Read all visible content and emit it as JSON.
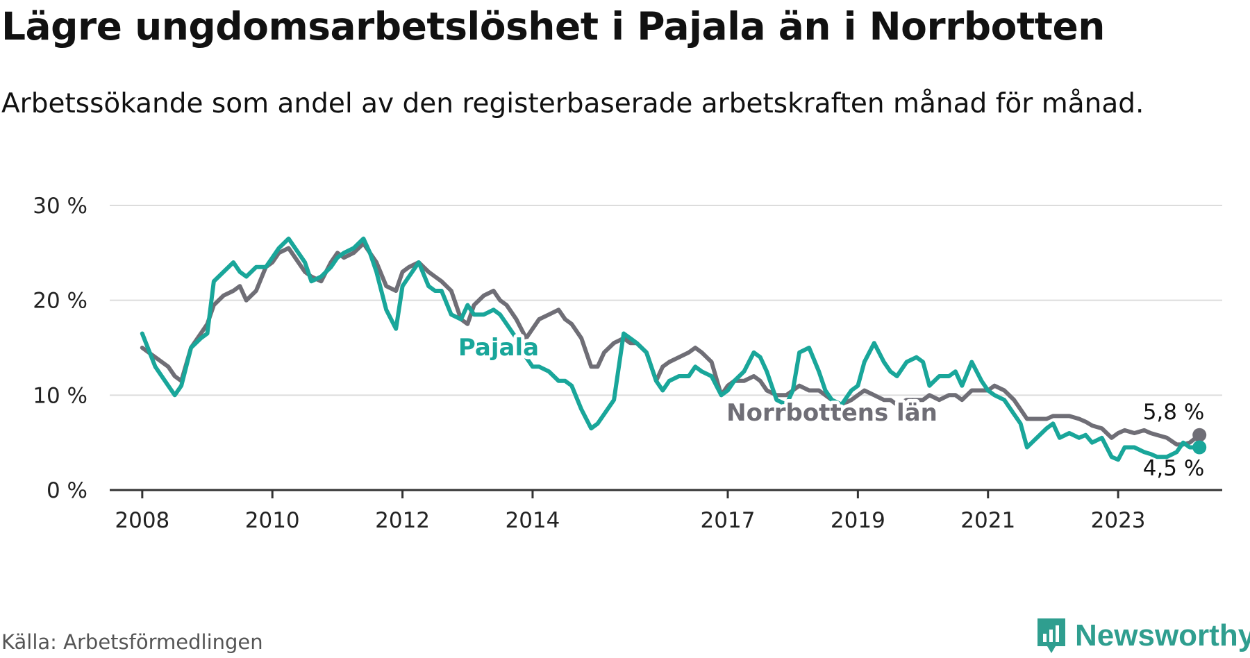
{
  "title": "Lägre ungdomsarbetslöshet i Pajala än i Norrbotten",
  "subtitle": "Arbetssökande som andel av den registerbaserade arbetskraften månad för månad.",
  "source": "Källa: Arbetsförmedlingen",
  "brand": "Newsworthy",
  "colors": {
    "pajala": "#19a69a",
    "norrbotten": "#6f6e76",
    "grid": "#dcdcdc",
    "axis": "#333333",
    "brand": "#2f9e8f"
  },
  "chart_data": {
    "type": "line",
    "title": "Lägre ungdomsarbetslöshet i Pajala än i Norrbotten",
    "xlabel": "",
    "ylabel": "",
    "ylim": [
      0,
      30
    ],
    "xlim": [
      2007.5,
      2024.6
    ],
    "x_ticks": [
      {
        "value": 2008,
        "label": "2008"
      },
      {
        "value": 2010,
        "label": "2010"
      },
      {
        "value": 2012,
        "label": "2012"
      },
      {
        "value": 2014,
        "label": "2014"
      },
      {
        "value": 2017,
        "label": "2017"
      },
      {
        "value": 2019,
        "label": "2019"
      },
      {
        "value": 2021,
        "label": "2021"
      },
      {
        "value": 2023,
        "label": "2023"
      }
    ],
    "y_ticks": [
      {
        "value": 0,
        "label": "0 %"
      },
      {
        "value": 10,
        "label": "10 %"
      },
      {
        "value": 20,
        "label": "20 %"
      },
      {
        "value": 30,
        "label": "30 %"
      }
    ],
    "grid": true,
    "series": [
      {
        "name": "Norrbottens län",
        "label": "Norrbottens län",
        "color": "#6f6e76",
        "end_label": "5,8 %",
        "points": [
          [
            2008.0,
            15.0
          ],
          [
            2008.2,
            14.0
          ],
          [
            2008.4,
            13.0
          ],
          [
            2008.5,
            12.0
          ],
          [
            2008.6,
            11.5
          ],
          [
            2008.75,
            15.0
          ],
          [
            2008.9,
            16.5
          ],
          [
            2009.0,
            17.5
          ],
          [
            2009.1,
            19.5
          ],
          [
            2009.25,
            20.5
          ],
          [
            2009.4,
            21.0
          ],
          [
            2009.5,
            21.5
          ],
          [
            2009.6,
            20.0
          ],
          [
            2009.75,
            21.0
          ],
          [
            2009.9,
            23.5
          ],
          [
            2010.0,
            24.0
          ],
          [
            2010.1,
            25.0
          ],
          [
            2010.25,
            25.5
          ],
          [
            2010.4,
            24.0
          ],
          [
            2010.5,
            23.0
          ],
          [
            2010.6,
            22.5
          ],
          [
            2010.75,
            22.0
          ],
          [
            2010.9,
            24.0
          ],
          [
            2011.0,
            25.0
          ],
          [
            2011.1,
            24.5
          ],
          [
            2011.25,
            25.0
          ],
          [
            2011.4,
            26.0
          ],
          [
            2011.5,
            25.0
          ],
          [
            2011.6,
            24.0
          ],
          [
            2011.75,
            21.5
          ],
          [
            2011.9,
            21.0
          ],
          [
            2012.0,
            23.0
          ],
          [
            2012.1,
            23.5
          ],
          [
            2012.25,
            24.0
          ],
          [
            2012.4,
            23.0
          ],
          [
            2012.5,
            22.5
          ],
          [
            2012.6,
            22.0
          ],
          [
            2012.75,
            21.0
          ],
          [
            2012.9,
            18.0
          ],
          [
            2013.0,
            17.5
          ],
          [
            2013.1,
            19.5
          ],
          [
            2013.25,
            20.5
          ],
          [
            2013.4,
            21.0
          ],
          [
            2013.5,
            20.0
          ],
          [
            2013.6,
            19.5
          ],
          [
            2013.75,
            18.0
          ],
          [
            2013.9,
            16.0
          ],
          [
            2014.0,
            17.0
          ],
          [
            2014.1,
            18.0
          ],
          [
            2014.25,
            18.5
          ],
          [
            2014.4,
            19.0
          ],
          [
            2014.5,
            18.0
          ],
          [
            2014.6,
            17.5
          ],
          [
            2014.75,
            16.0
          ],
          [
            2014.9,
            13.0
          ],
          [
            2015.0,
            13.0
          ],
          [
            2015.1,
            14.5
          ],
          [
            2015.25,
            15.5
          ],
          [
            2015.4,
            16.0
          ],
          [
            2015.5,
            15.5
          ],
          [
            2015.6,
            15.5
          ],
          [
            2015.75,
            14.5
          ],
          [
            2015.9,
            11.5
          ],
          [
            2016.0,
            13.0
          ],
          [
            2016.1,
            13.5
          ],
          [
            2016.25,
            14.0
          ],
          [
            2016.4,
            14.5
          ],
          [
            2016.5,
            15.0
          ],
          [
            2016.6,
            14.5
          ],
          [
            2016.75,
            13.5
          ],
          [
            2016.9,
            10.0
          ],
          [
            2017.0,
            11.0
          ],
          [
            2017.1,
            11.5
          ],
          [
            2017.25,
            11.5
          ],
          [
            2017.4,
            12.0
          ],
          [
            2017.5,
            11.5
          ],
          [
            2017.6,
            10.5
          ],
          [
            2017.75,
            10.0
          ],
          [
            2017.9,
            10.0
          ],
          [
            2018.0,
            10.5
          ],
          [
            2018.1,
            11.0
          ],
          [
            2018.25,
            10.5
          ],
          [
            2018.4,
            10.5
          ],
          [
            2018.5,
            10.0
          ],
          [
            2018.6,
            9.5
          ],
          [
            2018.75,
            9.0
          ],
          [
            2018.9,
            9.5
          ],
          [
            2019.0,
            10.0
          ],
          [
            2019.1,
            10.5
          ],
          [
            2019.25,
            10.0
          ],
          [
            2019.4,
            9.5
          ],
          [
            2019.5,
            9.5
          ],
          [
            2019.6,
            9.0
          ],
          [
            2019.75,
            9.5
          ],
          [
            2019.9,
            9.5
          ],
          [
            2020.0,
            9.5
          ],
          [
            2020.1,
            10.0
          ],
          [
            2020.25,
            9.5
          ],
          [
            2020.4,
            10.0
          ],
          [
            2020.5,
            10.0
          ],
          [
            2020.6,
            9.5
          ],
          [
            2020.75,
            10.5
          ],
          [
            2020.9,
            10.5
          ],
          [
            2021.0,
            10.5
          ],
          [
            2021.1,
            11.0
          ],
          [
            2021.25,
            10.5
          ],
          [
            2021.4,
            9.5
          ],
          [
            2021.5,
            8.5
          ],
          [
            2021.6,
            7.5
          ],
          [
            2021.75,
            7.5
          ],
          [
            2021.9,
            7.5
          ],
          [
            2022.0,
            7.8
          ],
          [
            2022.1,
            7.8
          ],
          [
            2022.25,
            7.8
          ],
          [
            2022.4,
            7.5
          ],
          [
            2022.5,
            7.2
          ],
          [
            2022.6,
            6.8
          ],
          [
            2022.75,
            6.5
          ],
          [
            2022.9,
            5.5
          ],
          [
            2023.0,
            6.0
          ],
          [
            2023.1,
            6.3
          ],
          [
            2023.25,
            6.0
          ],
          [
            2023.4,
            6.3
          ],
          [
            2023.5,
            6.0
          ],
          [
            2023.6,
            5.8
          ],
          [
            2023.75,
            5.5
          ],
          [
            2023.9,
            4.8
          ],
          [
            2024.0,
            4.8
          ],
          [
            2024.1,
            5.0
          ],
          [
            2024.25,
            5.8
          ]
        ]
      },
      {
        "name": "Pajala",
        "label": "Pajala",
        "color": "#19a69a",
        "end_label": "4,5 %",
        "points": [
          [
            2008.0,
            16.5
          ],
          [
            2008.2,
            13.0
          ],
          [
            2008.4,
            11.0
          ],
          [
            2008.5,
            10.0
          ],
          [
            2008.6,
            11.0
          ],
          [
            2008.75,
            15.0
          ],
          [
            2008.9,
            16.0
          ],
          [
            2009.0,
            16.5
          ],
          [
            2009.1,
            22.0
          ],
          [
            2009.25,
            23.0
          ],
          [
            2009.4,
            24.0
          ],
          [
            2009.5,
            23.0
          ],
          [
            2009.6,
            22.5
          ],
          [
            2009.75,
            23.5
          ],
          [
            2009.9,
            23.5
          ],
          [
            2010.0,
            24.5
          ],
          [
            2010.1,
            25.5
          ],
          [
            2010.25,
            26.5
          ],
          [
            2010.4,
            25.0
          ],
          [
            2010.5,
            24.0
          ],
          [
            2010.6,
            22.0
          ],
          [
            2010.75,
            22.5
          ],
          [
            2010.9,
            23.5
          ],
          [
            2011.0,
            24.5
          ],
          [
            2011.1,
            25.0
          ],
          [
            2011.25,
            25.5
          ],
          [
            2011.4,
            26.5
          ],
          [
            2011.5,
            25.0
          ],
          [
            2011.6,
            23.0
          ],
          [
            2011.75,
            19.0
          ],
          [
            2011.9,
            17.0
          ],
          [
            2012.0,
            21.5
          ],
          [
            2012.1,
            22.5
          ],
          [
            2012.25,
            24.0
          ],
          [
            2012.4,
            21.5
          ],
          [
            2012.5,
            21.0
          ],
          [
            2012.6,
            21.0
          ],
          [
            2012.75,
            18.5
          ],
          [
            2012.9,
            18.0
          ],
          [
            2013.0,
            19.5
          ],
          [
            2013.1,
            18.5
          ],
          [
            2013.25,
            18.5
          ],
          [
            2013.4,
            19.0
          ],
          [
            2013.5,
            18.5
          ],
          [
            2013.6,
            17.5
          ],
          [
            2013.75,
            16.0
          ],
          [
            2013.9,
            14.0
          ],
          [
            2014.0,
            13.0
          ],
          [
            2014.1,
            13.0
          ],
          [
            2014.25,
            12.5
          ],
          [
            2014.4,
            11.5
          ],
          [
            2014.5,
            11.5
          ],
          [
            2014.6,
            11.0
          ],
          [
            2014.75,
            8.5
          ],
          [
            2014.9,
            6.5
          ],
          [
            2015.0,
            7.0
          ],
          [
            2015.1,
            8.0
          ],
          [
            2015.25,
            9.5
          ],
          [
            2015.4,
            16.5
          ],
          [
            2015.5,
            16.0
          ],
          [
            2015.6,
            15.5
          ],
          [
            2015.75,
            14.5
          ],
          [
            2015.9,
            11.5
          ],
          [
            2016.0,
            10.5
          ],
          [
            2016.1,
            11.5
          ],
          [
            2016.25,
            12.0
          ],
          [
            2016.4,
            12.0
          ],
          [
            2016.5,
            13.0
          ],
          [
            2016.6,
            12.5
          ],
          [
            2016.75,
            12.0
          ],
          [
            2016.9,
            10.0
          ],
          [
            2017.0,
            10.5
          ],
          [
            2017.1,
            11.5
          ],
          [
            2017.25,
            12.5
          ],
          [
            2017.4,
            14.5
          ],
          [
            2017.5,
            14.0
          ],
          [
            2017.6,
            12.5
          ],
          [
            2017.75,
            9.5
          ],
          [
            2017.9,
            9.0
          ],
          [
            2018.0,
            10.5
          ],
          [
            2018.1,
            14.5
          ],
          [
            2018.25,
            15.0
          ],
          [
            2018.4,
            12.5
          ],
          [
            2018.5,
            10.5
          ],
          [
            2018.6,
            9.5
          ],
          [
            2018.75,
            9.0
          ],
          [
            2018.9,
            10.5
          ],
          [
            2019.0,
            11.0
          ],
          [
            2019.1,
            13.5
          ],
          [
            2019.25,
            15.5
          ],
          [
            2019.4,
            13.5
          ],
          [
            2019.5,
            12.5
          ],
          [
            2019.6,
            12.0
          ],
          [
            2019.75,
            13.5
          ],
          [
            2019.9,
            14.0
          ],
          [
            2020.0,
            13.5
          ],
          [
            2020.1,
            11.0
          ],
          [
            2020.25,
            12.0
          ],
          [
            2020.4,
            12.0
          ],
          [
            2020.5,
            12.5
          ],
          [
            2020.6,
            11.0
          ],
          [
            2020.75,
            13.5
          ],
          [
            2020.9,
            11.5
          ],
          [
            2021.0,
            10.5
          ],
          [
            2021.1,
            10.0
          ],
          [
            2021.25,
            9.5
          ],
          [
            2021.4,
            8.0
          ],
          [
            2021.5,
            7.0
          ],
          [
            2021.6,
            4.5
          ],
          [
            2021.75,
            5.5
          ],
          [
            2021.9,
            6.5
          ],
          [
            2022.0,
            7.0
          ],
          [
            2022.1,
            5.5
          ],
          [
            2022.25,
            6.0
          ],
          [
            2022.4,
            5.5
          ],
          [
            2022.5,
            5.8
          ],
          [
            2022.6,
            5.0
          ],
          [
            2022.75,
            5.5
          ],
          [
            2022.9,
            3.5
          ],
          [
            2023.0,
            3.2
          ],
          [
            2023.1,
            4.5
          ],
          [
            2023.25,
            4.5
          ],
          [
            2023.4,
            4.0
          ],
          [
            2023.5,
            3.8
          ],
          [
            2023.6,
            3.5
          ],
          [
            2023.75,
            3.5
          ],
          [
            2023.9,
            4.0
          ],
          [
            2024.0,
            5.0
          ],
          [
            2024.1,
            4.5
          ],
          [
            2024.25,
            4.5
          ]
        ]
      }
    ]
  }
}
